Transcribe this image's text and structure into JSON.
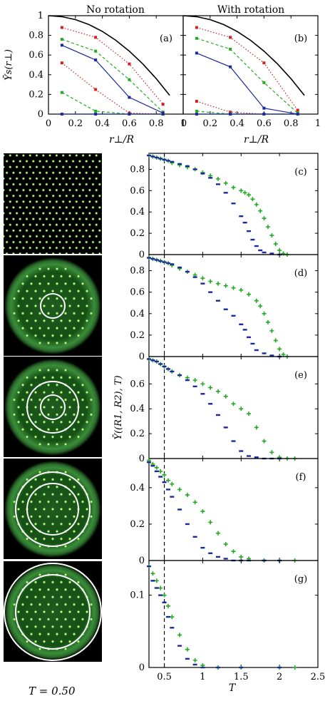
{
  "figure": {
    "temperature_caption": "T = 0.50"
  },
  "chart_data": [
    {
      "id": "a",
      "type": "line",
      "title": "No rotation",
      "panel_label": "(a)",
      "xlabel": "r⊥/R",
      "ylabel": "Ῡs(r⊥)",
      "xlim": [
        0,
        1
      ],
      "ylim": [
        0,
        1
      ],
      "xticks": [
        "0",
        "0.2",
        "0.4",
        "0.6",
        "0.8",
        "1"
      ],
      "yticks": [
        "0",
        "0.2",
        "0.4",
        "0.6",
        "0.8",
        "1"
      ],
      "series": [
        {
          "color": "#000000",
          "style": "curve",
          "x": [
            0,
            0.1,
            0.2,
            0.3,
            0.4,
            0.5,
            0.6,
            0.7,
            0.8,
            0.9
          ],
          "values": [
            1.0,
            0.99,
            0.96,
            0.91,
            0.84,
            0.75,
            0.64,
            0.51,
            0.36,
            0.19
          ]
        },
        {
          "color": "#cc2222",
          "style": "dotted",
          "x": [
            0.1,
            0.35,
            0.6,
            0.85
          ],
          "values": [
            0.88,
            0.78,
            0.51,
            0.1
          ]
        },
        {
          "color": "#22aa22",
          "style": "dashed",
          "x": [
            0.1,
            0.35,
            0.6,
            0.85
          ],
          "values": [
            0.76,
            0.64,
            0.35,
            0.02
          ]
        },
        {
          "color": "#1a2a9a",
          "style": "solid",
          "x": [
            0.1,
            0.35,
            0.6,
            0.85
          ],
          "values": [
            0.7,
            0.55,
            0.17,
            0.01
          ]
        },
        {
          "color": "#cc2222",
          "style": "dotted",
          "x": [
            0.1,
            0.35,
            0.6,
            0.85
          ],
          "values": [
            0.52,
            0.25,
            0.01,
            0.0
          ]
        },
        {
          "color": "#22aa22",
          "style": "dashed",
          "x": [
            0.1,
            0.35,
            0.6,
            0.85
          ],
          "values": [
            0.22,
            0.03,
            0.0,
            0.0
          ]
        },
        {
          "color": "#1a2a9a",
          "style": "solid",
          "x": [
            0.1,
            0.35,
            0.6,
            0.85
          ],
          "values": [
            0.0,
            0.0,
            0.0,
            0.0
          ]
        }
      ]
    },
    {
      "id": "b",
      "type": "line",
      "title": "With rotation",
      "panel_label": "(b)",
      "xlabel": "r⊥/R",
      "xlim": [
        0,
        1
      ],
      "ylim": [
        0,
        1
      ],
      "xticks": [
        "0",
        "0.2",
        "0.4",
        "0.6",
        "0.8",
        "1"
      ],
      "series": [
        {
          "color": "#000000",
          "style": "curve",
          "x": [
            0,
            0.1,
            0.2,
            0.3,
            0.4,
            0.5,
            0.6,
            0.7,
            0.8,
            0.9
          ],
          "values": [
            1.0,
            0.99,
            0.96,
            0.91,
            0.84,
            0.75,
            0.64,
            0.51,
            0.36,
            0.19
          ]
        },
        {
          "color": "#cc2222",
          "style": "dotted",
          "x": [
            0.1,
            0.35,
            0.6,
            0.85
          ],
          "values": [
            0.88,
            0.78,
            0.52,
            0.04
          ]
        },
        {
          "color": "#22aa22",
          "style": "dashed",
          "x": [
            0.1,
            0.35,
            0.6,
            0.85
          ],
          "values": [
            0.77,
            0.66,
            0.32,
            0.01
          ]
        },
        {
          "color": "#1a2a9a",
          "style": "solid",
          "x": [
            0.1,
            0.35,
            0.6,
            0.85
          ],
          "values": [
            0.62,
            0.48,
            0.06,
            0.0
          ]
        },
        {
          "color": "#cc2222",
          "style": "dotted",
          "x": [
            0.1,
            0.35,
            0.6,
            0.85
          ],
          "values": [
            0.13,
            0.02,
            0.0,
            0.0
          ]
        },
        {
          "color": "#22aa22",
          "style": "dashed",
          "x": [
            0.1,
            0.35,
            0.6,
            0.85
          ],
          "values": [
            0.03,
            0.0,
            0.0,
            0.0
          ]
        },
        {
          "color": "#1a2a9a",
          "style": "solid",
          "x": [
            0.1,
            0.35,
            0.6,
            0.85
          ],
          "values": [
            0.0,
            0.0,
            0.0,
            0.0
          ]
        }
      ]
    },
    {
      "id": "c",
      "type": "scatter",
      "panel_label": "(c)",
      "xlim": [
        0.3,
        2.5
      ],
      "ylim": [
        0,
        0.95
      ],
      "yticks": [
        "0",
        "0.2",
        "0.4",
        "0.6",
        "0.8"
      ],
      "vline": 0.5,
      "series": [
        {
          "color": "#22aa22",
          "marker": "plus",
          "x": [
            0.3,
            0.35,
            0.4,
            0.45,
            0.5,
            0.55,
            0.6,
            0.7,
            0.8,
            0.9,
            1.0,
            1.1,
            1.2,
            1.3,
            1.4,
            1.5,
            1.55,
            1.6,
            1.65,
            1.7,
            1.75,
            1.8,
            1.85,
            1.9,
            1.95,
            2.0,
            2.05,
            2.1
          ],
          "values": [
            0.93,
            0.92,
            0.91,
            0.9,
            0.89,
            0.88,
            0.86,
            0.84,
            0.82,
            0.8,
            0.77,
            0.74,
            0.71,
            0.67,
            0.63,
            0.6,
            0.58,
            0.56,
            0.52,
            0.47,
            0.41,
            0.34,
            0.26,
            0.18,
            0.1,
            0.04,
            0.01,
            0.0
          ]
        },
        {
          "color": "#1a2a9a",
          "marker": "dash",
          "x": [
            0.3,
            0.35,
            0.4,
            0.45,
            0.5,
            0.55,
            0.6,
            0.7,
            0.8,
            0.9,
            1.0,
            1.1,
            1.2,
            1.3,
            1.4,
            1.5,
            1.55,
            1.6,
            1.65,
            1.7,
            1.75,
            1.8,
            1.9,
            2.0
          ],
          "values": [
            0.93,
            0.92,
            0.91,
            0.9,
            0.89,
            0.88,
            0.87,
            0.85,
            0.83,
            0.8,
            0.76,
            0.72,
            0.66,
            0.58,
            0.48,
            0.36,
            0.3,
            0.22,
            0.14,
            0.08,
            0.04,
            0.02,
            0.01,
            0.0
          ]
        }
      ]
    },
    {
      "id": "d",
      "type": "scatter",
      "panel_label": "(d)",
      "xlim": [
        0.3,
        2.5
      ],
      "ylim": [
        0,
        0.95
      ],
      "yticks": [
        "0",
        "0.2",
        "0.4",
        "0.6",
        "0.8"
      ],
      "vline": 0.5,
      "series": [
        {
          "color": "#22aa22",
          "marker": "plus",
          "x": [
            0.3,
            0.35,
            0.4,
            0.45,
            0.5,
            0.55,
            0.6,
            0.7,
            0.8,
            0.9,
            1.0,
            1.1,
            1.2,
            1.3,
            1.4,
            1.5,
            1.6,
            1.7,
            1.75,
            1.8,
            1.85,
            1.9,
            1.95,
            2.0,
            2.05,
            2.1
          ],
          "values": [
            0.92,
            0.91,
            0.9,
            0.89,
            0.88,
            0.87,
            0.85,
            0.82,
            0.79,
            0.76,
            0.73,
            0.7,
            0.68,
            0.66,
            0.64,
            0.62,
            0.58,
            0.52,
            0.47,
            0.4,
            0.32,
            0.24,
            0.15,
            0.07,
            0.02,
            0.0
          ]
        },
        {
          "color": "#1a2a9a",
          "marker": "dash",
          "x": [
            0.3,
            0.35,
            0.4,
            0.45,
            0.5,
            0.55,
            0.6,
            0.7,
            0.8,
            0.9,
            1.0,
            1.1,
            1.2,
            1.3,
            1.4,
            1.5,
            1.55,
            1.6,
            1.65,
            1.7,
            1.8,
            1.9,
            2.0
          ],
          "values": [
            0.92,
            0.91,
            0.9,
            0.89,
            0.88,
            0.87,
            0.86,
            0.83,
            0.79,
            0.74,
            0.68,
            0.6,
            0.52,
            0.44,
            0.38,
            0.3,
            0.25,
            0.18,
            0.12,
            0.06,
            0.03,
            0.01,
            0.0
          ]
        }
      ]
    },
    {
      "id": "e",
      "type": "scatter",
      "panel_label": "(e)",
      "xlim": [
        0.3,
        2.5
      ],
      "ylim": [
        0,
        0.82
      ],
      "yticks": [
        "0",
        "0.2",
        "0.4",
        "0.6"
      ],
      "ylabel": "Ῡ((R1, R2), T)",
      "vline": 0.5,
      "series": [
        {
          "color": "#22aa22",
          "marker": "plus",
          "x": [
            0.3,
            0.35,
            0.4,
            0.45,
            0.5,
            0.55,
            0.6,
            0.7,
            0.8,
            0.9,
            1.0,
            1.1,
            1.2,
            1.3,
            1.4,
            1.5,
            1.6,
            1.7,
            1.8,
            1.9,
            2.0,
            2.1,
            2.2
          ],
          "values": [
            0.8,
            0.79,
            0.78,
            0.76,
            0.74,
            0.72,
            0.7,
            0.67,
            0.65,
            0.63,
            0.6,
            0.57,
            0.54,
            0.5,
            0.44,
            0.4,
            0.36,
            0.25,
            0.14,
            0.05,
            0.01,
            0.0,
            0.0
          ]
        },
        {
          "color": "#1a2a9a",
          "marker": "dash",
          "x": [
            0.3,
            0.35,
            0.4,
            0.45,
            0.5,
            0.55,
            0.6,
            0.7,
            0.8,
            0.9,
            1.0,
            1.1,
            1.2,
            1.3,
            1.4,
            1.5,
            1.6,
            1.7,
            1.8,
            1.9,
            2.0
          ],
          "values": [
            0.8,
            0.79,
            0.78,
            0.76,
            0.74,
            0.72,
            0.7,
            0.67,
            0.63,
            0.58,
            0.52,
            0.44,
            0.35,
            0.25,
            0.14,
            0.06,
            0.02,
            0.01,
            0.0,
            0.0,
            0.0
          ]
        }
      ]
    },
    {
      "id": "f",
      "type": "scatter",
      "panel_label": "(f)",
      "xlim": [
        0.3,
        2.5
      ],
      "ylim": [
        0,
        0.56
      ],
      "yticks": [
        "0",
        "0.2",
        "0.4"
      ],
      "vline": 0.5,
      "series": [
        {
          "color": "#22aa22",
          "marker": "plus",
          "x": [
            0.3,
            0.35,
            0.4,
            0.45,
            0.5,
            0.55,
            0.6,
            0.7,
            0.8,
            0.9,
            1.0,
            1.1,
            1.2,
            1.3,
            1.4,
            1.5,
            1.6,
            1.8,
            2.0,
            2.2
          ],
          "values": [
            0.55,
            0.53,
            0.51,
            0.49,
            0.47,
            0.44,
            0.42,
            0.39,
            0.36,
            0.32,
            0.27,
            0.21,
            0.15,
            0.09,
            0.05,
            0.02,
            0.01,
            0.0,
            0.0,
            0.0
          ]
        },
        {
          "color": "#1a2a9a",
          "marker": "dash",
          "x": [
            0.3,
            0.35,
            0.4,
            0.45,
            0.5,
            0.55,
            0.6,
            0.7,
            0.8,
            0.9,
            1.0,
            1.1,
            1.2,
            1.3,
            1.4,
            1.5,
            1.6,
            1.8,
            2.0
          ],
          "values": [
            0.54,
            0.52,
            0.49,
            0.46,
            0.43,
            0.39,
            0.35,
            0.28,
            0.2,
            0.13,
            0.07,
            0.04,
            0.02,
            0.01,
            0.0,
            0.0,
            0.0,
            0.0,
            0.0
          ]
        }
      ]
    },
    {
      "id": "g",
      "type": "scatter",
      "panel_label": "(g)",
      "xlim": [
        0.3,
        2.5
      ],
      "ylim": [
        0,
        0.148
      ],
      "yticks": [
        "0",
        "0.1"
      ],
      "xticks": [
        "0.5",
        "1",
        "1.5",
        "2",
        "2.5"
      ],
      "xlabel": "T",
      "vline": 0.5,
      "series": [
        {
          "color": "#22aa22",
          "marker": "plus",
          "x": [
            0.3,
            0.35,
            0.4,
            0.45,
            0.5,
            0.55,
            0.6,
            0.7,
            0.8,
            0.9,
            1.0,
            1.2,
            1.5,
            2.0,
            2.2
          ],
          "values": [
            0.14,
            0.13,
            0.12,
            0.11,
            0.1,
            0.085,
            0.07,
            0.045,
            0.025,
            0.01,
            0.003,
            0.0,
            0.0,
            0.0,
            0.0
          ]
        },
        {
          "color": "#1a2a9a",
          "marker": "dash",
          "x": [
            0.3,
            0.35,
            0.4,
            0.45,
            0.5,
            0.55,
            0.6,
            0.7,
            0.8,
            0.9,
            1.0,
            1.2,
            1.5,
            2.0
          ],
          "values": [
            0.14,
            0.12,
            0.11,
            0.1,
            0.09,
            0.07,
            0.055,
            0.03,
            0.012,
            0.004,
            0.0,
            0.0,
            0.0,
            0.0
          ]
        }
      ]
    }
  ]
}
